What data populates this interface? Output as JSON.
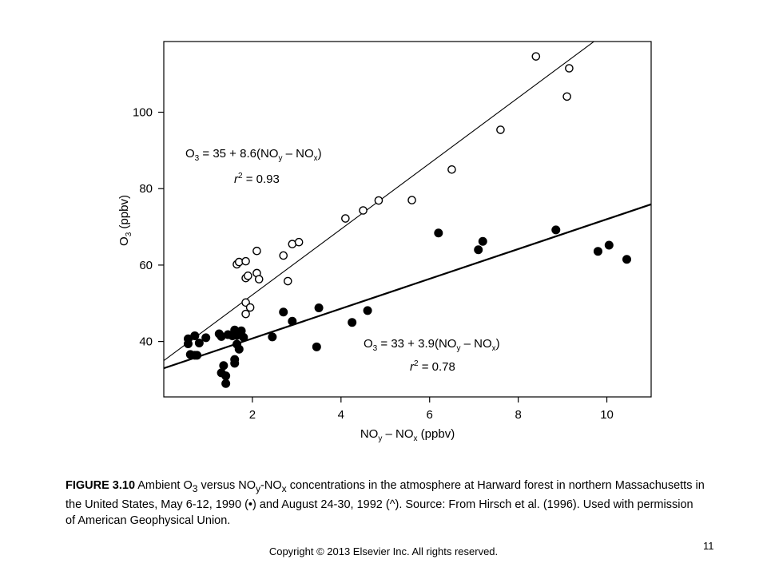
{
  "chart_data": {
    "type": "scatter",
    "title": "",
    "xlabel_parts": {
      "main1": "NO",
      "sub1": "y",
      "mid": " – NO",
      "sub2": "x",
      "tail": " (ppbv)"
    },
    "ylabel_parts": {
      "main": "O",
      "sub": "3",
      "tail": " (ppbv)"
    },
    "xlim": [
      0,
      11.0
    ],
    "ylim": [
      25.5,
      118.5
    ],
    "xticks": [
      2,
      4,
      6,
      8,
      10
    ],
    "yticks": [
      40,
      60,
      80,
      100
    ],
    "grid": false,
    "legend": "none",
    "series": [
      {
        "marker": "open-circle",
        "fit": {
          "intercept": 35,
          "slope": 8.6
        },
        "points": [
          [
            1.65,
            60.2
          ],
          [
            1.7,
            60.8
          ],
          [
            1.85,
            61.0
          ],
          [
            2.1,
            63.7
          ],
          [
            1.85,
            56.6
          ],
          [
            1.9,
            57.2
          ],
          [
            2.1,
            57.9
          ],
          [
            2.15,
            56.3
          ],
          [
            1.85,
            50.2
          ],
          [
            1.95,
            48.9
          ],
          [
            1.85,
            47.2
          ],
          [
            2.7,
            62.5
          ],
          [
            2.9,
            65.5
          ],
          [
            3.05,
            66.0
          ],
          [
            2.8,
            55.8
          ],
          [
            4.1,
            72.2
          ],
          [
            4.5,
            74.3
          ],
          [
            4.85,
            76.9
          ],
          [
            5.6,
            77.0
          ],
          [
            6.5,
            85.0
          ],
          [
            7.6,
            95.4
          ],
          [
            8.4,
            114.6
          ],
          [
            9.15,
            111.5
          ],
          [
            9.1,
            104.1
          ]
        ]
      },
      {
        "marker": "filled-circle",
        "fit": {
          "intercept": 33,
          "slope": 3.9
        },
        "points": [
          [
            0.55,
            40.7
          ],
          [
            0.55,
            39.4
          ],
          [
            0.6,
            36.6
          ],
          [
            0.7,
            41.5
          ],
          [
            0.7,
            36.4
          ],
          [
            0.75,
            36.4
          ],
          [
            0.8,
            39.6
          ],
          [
            0.95,
            41.0
          ],
          [
            1.25,
            42.0
          ],
          [
            1.3,
            41.3
          ],
          [
            1.45,
            41.8
          ],
          [
            1.55,
            41.5
          ],
          [
            1.6,
            43.0
          ],
          [
            1.65,
            41.6
          ],
          [
            1.75,
            42.8
          ],
          [
            1.8,
            41.1
          ],
          [
            1.7,
            38.0
          ],
          [
            1.65,
            39.3
          ],
          [
            1.6,
            35.3
          ],
          [
            1.6,
            34.3
          ],
          [
            1.35,
            33.7
          ],
          [
            1.3,
            31.8
          ],
          [
            1.4,
            31.0
          ],
          [
            1.4,
            29.0
          ],
          [
            2.45,
            41.2
          ],
          [
            2.7,
            47.7
          ],
          [
            2.9,
            45.3
          ],
          [
            3.45,
            38.6
          ],
          [
            3.5,
            48.8
          ],
          [
            4.25,
            45.0
          ],
          [
            4.6,
            48.1
          ],
          [
            6.2,
            68.4
          ],
          [
            7.1,
            64.0
          ],
          [
            7.2,
            66.2
          ],
          [
            8.85,
            69.2
          ],
          [
            9.8,
            63.6
          ],
          [
            10.05,
            65.2
          ],
          [
            10.45,
            61.5
          ]
        ]
      }
    ],
    "annotations": {
      "open_equation": {
        "lead": "O",
        "s1": "3",
        "mid": " = 35 + 8.6(NO",
        "s2": "y",
        "mid2": " – NO",
        "s3": "x",
        "tail": ")"
      },
      "open_r2": {
        "r": "r",
        "sup": "2",
        "tail": " = 0.93"
      },
      "filled_equation": {
        "lead": "O",
        "s1": "3",
        "mid": " = 33 + 3.9(NO",
        "s2": "y",
        "mid2": " – NO",
        "s3": "x",
        "tail": ")"
      },
      "filled_r2": {
        "r": "r",
        "sup": "2",
        "tail": " = 0.78"
      }
    }
  },
  "caption": {
    "label": "FIGURE 3.10",
    "t1": " Ambient O",
    "s1": "3",
    "t2": " versus NO",
    "s2": "y",
    "t3": "-NO",
    "s3": "x",
    "t4": " concentrations in the atmosphere at Harward forest in northern Massachusetts in the United States, May 6-12, 1990 (•) and August 24-30, 1992 (^). Source: From Hirsch et al. (1996). Used with permission of American Geophysical Union."
  },
  "copyright": "Copyright © 2013 Elsevier Inc. All rights reserved.",
  "slide_number": "11"
}
